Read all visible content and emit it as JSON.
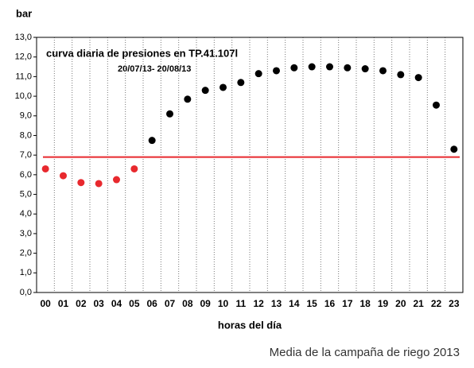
{
  "chart_data": {
    "type": "scatter",
    "title": "curva diaria de presiones en TP.41.107l",
    "subtitle": "20/07/13- 20/08/13",
    "y_label": "bar",
    "x_label": "horas del día",
    "footer": "Media de la campaña de riego 2013",
    "categories": [
      "00",
      "01",
      "02",
      "03",
      "04",
      "05",
      "06",
      "07",
      "08",
      "09",
      "10",
      "11",
      "12",
      "13",
      "14",
      "15",
      "16",
      "17",
      "18",
      "19",
      "20",
      "21",
      "22",
      "23"
    ],
    "values": [
      6.3,
      5.95,
      5.6,
      5.55,
      5.75,
      6.3,
      7.75,
      9.1,
      9.85,
      10.3,
      10.45,
      10.7,
      11.15,
      11.3,
      11.45,
      11.5,
      11.5,
      11.45,
      11.4,
      11.3,
      11.1,
      10.95,
      9.55,
      7.3
    ],
    "colors": [
      "#e8292e",
      "#e8292e",
      "#e8292e",
      "#e8292e",
      "#e8292e",
      "#e8292e",
      "#000000",
      "#000000",
      "#000000",
      "#000000",
      "#000000",
      "#000000",
      "#000000",
      "#000000",
      "#000000",
      "#000000",
      "#000000",
      "#000000",
      "#000000",
      "#000000",
      "#000000",
      "#000000",
      "#000000",
      "#000000"
    ],
    "reference_line": {
      "value": 6.9,
      "color": "#e8292e"
    },
    "ylim": [
      0,
      13
    ],
    "yticks": [
      {
        "value": 0,
        "label": "0,0"
      },
      {
        "value": 1,
        "label": "1,0"
      },
      {
        "value": 2,
        "label": "2,0"
      },
      {
        "value": 3,
        "label": "3,0"
      },
      {
        "value": 4,
        "label": "4,0"
      },
      {
        "value": 5,
        "label": "5,0"
      },
      {
        "value": 6,
        "label": "6,0"
      },
      {
        "value": 7,
        "label": "7,0"
      },
      {
        "value": 8,
        "label": "8,0"
      },
      {
        "value": 9,
        "label": "9,0"
      },
      {
        "value": 10,
        "label": "10,0"
      },
      {
        "value": 11,
        "label": "11,0"
      },
      {
        "value": 12,
        "label": "12,0"
      },
      {
        "value": 13,
        "label": "13,0"
      }
    ],
    "grid": true
  }
}
